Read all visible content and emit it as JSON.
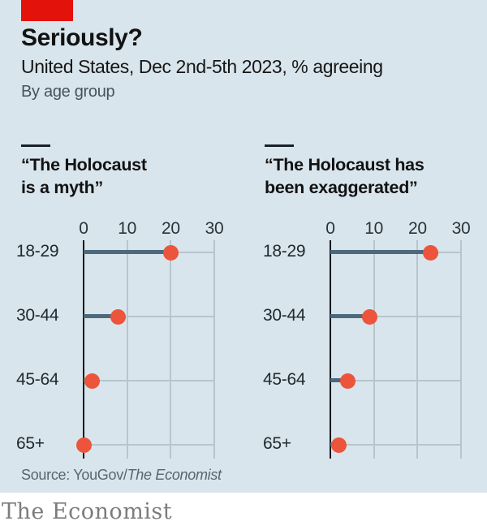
{
  "header": {
    "title": "Seriously?",
    "subtitle": "United States, Dec 2nd-5th 2023, % agreeing",
    "byline": "By age group"
  },
  "chart_data": [
    {
      "type": "bar",
      "style": "lollipop",
      "title": "“The Holocaust is a myth”",
      "title_lines": [
        "“The Holocaust",
        "is a myth”"
      ],
      "categories": [
        "18-29",
        "30-44",
        "45-64",
        "65+"
      ],
      "values": [
        20,
        8,
        2,
        0
      ],
      "xlabel": "",
      "ylabel": "",
      "xlim": [
        0,
        30
      ],
      "xticks": [
        0,
        10,
        20,
        30
      ],
      "grid": true,
      "legend": false
    },
    {
      "type": "bar",
      "style": "lollipop",
      "title": "“The Holocaust has been exaggerated”",
      "title_lines": [
        "“The Holocaust has",
        "been exaggerated”"
      ],
      "categories": [
        "18-29",
        "30-44",
        "45-64",
        "65+"
      ],
      "values": [
        23,
        9,
        4,
        2
      ],
      "xlabel": "",
      "ylabel": "",
      "xlim": [
        0,
        30
      ],
      "xticks": [
        0,
        10,
        20,
        30
      ],
      "grid": true,
      "legend": false
    }
  ],
  "footer": {
    "source_prefix": "Source: YouGov/",
    "source_italic": "The Economist"
  },
  "masthead": "The Economist",
  "colors": {
    "background": "#d9e5ec",
    "accent_red": "#e3120b",
    "dot": "#ec543b",
    "bar": "#4d6a7d",
    "grid": "#b7c5cc",
    "axis": "#13181c",
    "text_dark": "#121212",
    "text_gray": "#45535b",
    "source_gray": "#57666e",
    "masthead_gray": "#7c7c7c"
  }
}
